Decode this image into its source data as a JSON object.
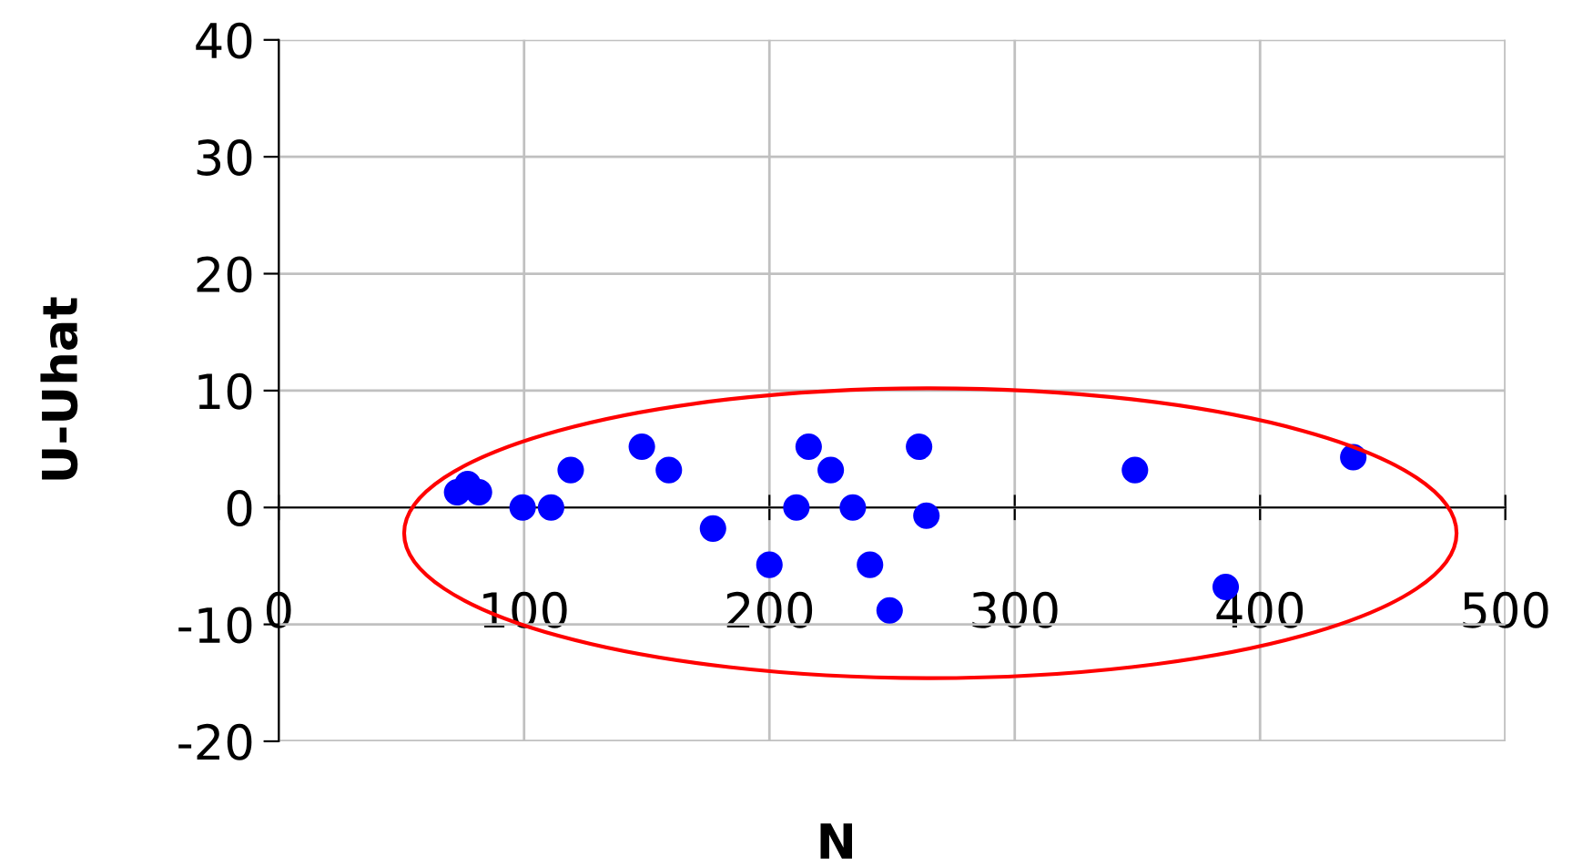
{
  "chart_data": {
    "type": "scatter",
    "xlabel": "N",
    "ylabel": "U-Uhat",
    "color": "#0000ff",
    "marker": "circle",
    "grid": true,
    "x": [
      72.7,
      77,
      81.6,
      99.4,
      111,
      119,
      148,
      159,
      177,
      200,
      211,
      216,
      225,
      234,
      241,
      249,
      261,
      264,
      349,
      386,
      438
    ],
    "values": [
      1.3,
      2,
      1.3,
      0,
      0,
      3.2,
      5.2,
      3.2,
      -1.8,
      -4.9,
      0,
      5.2,
      3.2,
      0,
      -4.9,
      -8.8,
      5.2,
      -0.7,
      3.2,
      -6.8,
      4.3
    ],
    "xlim": [
      0,
      500
    ],
    "xticks": [
      0,
      100,
      200,
      300,
      400,
      500
    ],
    "ylim": [
      -20,
      40
    ],
    "yticks": [
      -20,
      -10,
      0,
      10,
      20,
      30,
      40
    ]
  }
}
